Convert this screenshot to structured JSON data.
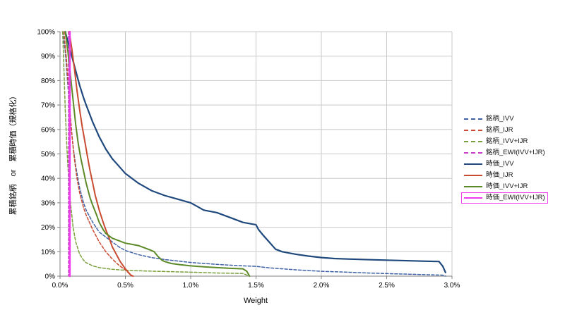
{
  "chart_data": {
    "type": "line",
    "title": "",
    "xlabel": "Weight",
    "ylabel": "累積銘柄　or　累積時価（規格化）",
    "xlim": [
      0,
      3.0
    ],
    "ylim": [
      0,
      100
    ],
    "x_unit": "percent weight",
    "y_unit": "percent cumulative",
    "grid": true,
    "grid_color": "#c9c9c9",
    "axis_color": "#808080",
    "legend_position": "right-outside",
    "x_ticks": [
      0,
      0.5,
      1.0,
      1.5,
      2.0,
      2.5,
      3.0
    ],
    "x_tick_labels": [
      "0.0%",
      "0.5%",
      "1.0%",
      "1.5%",
      "2.0%",
      "2.5%",
      "3.0%"
    ],
    "y_ticks": [
      0,
      10,
      20,
      30,
      40,
      50,
      60,
      70,
      80,
      90,
      100
    ],
    "y_tick_labels": [
      "0%",
      "10%",
      "20%",
      "30%",
      "40%",
      "50%",
      "60%",
      "70%",
      "80%",
      "90%",
      "100%"
    ],
    "series": [
      {
        "name": "銘柄_IVV",
        "color": "#3f62a7",
        "style": "dashed",
        "width": 1.5,
        "points": [
          [
            0.02,
            100
          ],
          [
            0.04,
            92
          ],
          [
            0.06,
            78
          ],
          [
            0.08,
            64
          ],
          [
            0.1,
            53
          ],
          [
            0.12,
            45
          ],
          [
            0.15,
            36
          ],
          [
            0.18,
            30
          ],
          [
            0.2,
            27
          ],
          [
            0.25,
            22
          ],
          [
            0.3,
            18
          ],
          [
            0.35,
            16
          ],
          [
            0.4,
            14
          ],
          [
            0.45,
            12
          ],
          [
            0.5,
            10.5
          ],
          [
            0.6,
            8.8
          ],
          [
            0.7,
            7.6
          ],
          [
            0.8,
            6.8
          ],
          [
            0.9,
            6.2
          ],
          [
            1.0,
            5.6
          ],
          [
            1.2,
            4.8
          ],
          [
            1.4,
            4.2
          ],
          [
            1.5,
            4.0
          ],
          [
            1.6,
            3.4
          ],
          [
            1.8,
            2.6
          ],
          [
            2.0,
            2.0
          ],
          [
            2.2,
            1.6
          ],
          [
            2.4,
            1.2
          ],
          [
            2.6,
            0.9
          ],
          [
            2.8,
            0.6
          ],
          [
            2.93,
            0.4
          ],
          [
            2.95,
            0
          ]
        ]
      },
      {
        "name": "銘柄_IJR",
        "color": "#cc4a31",
        "style": "dashed",
        "width": 1.5,
        "points": [
          [
            0.03,
            100
          ],
          [
            0.05,
            88
          ],
          [
            0.07,
            72
          ],
          [
            0.09,
            58
          ],
          [
            0.11,
            48
          ],
          [
            0.13,
            40
          ],
          [
            0.15,
            34
          ],
          [
            0.18,
            28
          ],
          [
            0.2,
            25
          ],
          [
            0.25,
            19
          ],
          [
            0.3,
            14
          ],
          [
            0.35,
            10
          ],
          [
            0.4,
            7
          ],
          [
            0.45,
            4.5
          ],
          [
            0.5,
            2.5
          ],
          [
            0.55,
            0
          ]
        ]
      },
      {
        "name": "銘柄_IVV+IJR",
        "color": "#7aa03c",
        "style": "dashed",
        "width": 1.5,
        "points": [
          [
            0.02,
            100
          ],
          [
            0.03,
            85
          ],
          [
            0.04,
            68
          ],
          [
            0.05,
            55
          ],
          [
            0.06,
            45
          ],
          [
            0.08,
            30
          ],
          [
            0.1,
            20
          ],
          [
            0.12,
            14
          ],
          [
            0.15,
            9
          ],
          [
            0.18,
            6.5
          ],
          [
            0.2,
            5.5
          ],
          [
            0.25,
            4.2
          ],
          [
            0.3,
            3.5
          ],
          [
            0.4,
            2.8
          ],
          [
            0.5,
            2.4
          ],
          [
            0.6,
            2.2
          ],
          [
            0.8,
            1.9
          ],
          [
            1.0,
            1.6
          ],
          [
            1.2,
            1.3
          ],
          [
            1.4,
            1.1
          ],
          [
            1.45,
            0
          ]
        ]
      },
      {
        "name": "銘柄_EWI(IVV+IJR)",
        "color": "#c93ec9",
        "style": "dashed",
        "width": 1.5,
        "points": [
          [
            0.065,
            100
          ],
          [
            0.065,
            0
          ]
        ]
      },
      {
        "name": "時価_IVV",
        "color": "#1f497d",
        "style": "solid",
        "width": 2.2,
        "points": [
          [
            0.04,
            100
          ],
          [
            0.06,
            96
          ],
          [
            0.08,
            92
          ],
          [
            0.1,
            88
          ],
          [
            0.12,
            84
          ],
          [
            0.15,
            78
          ],
          [
            0.18,
            73
          ],
          [
            0.2,
            70
          ],
          [
            0.25,
            63
          ],
          [
            0.3,
            57
          ],
          [
            0.35,
            52
          ],
          [
            0.4,
            48
          ],
          [
            0.45,
            45
          ],
          [
            0.5,
            42
          ],
          [
            0.6,
            38
          ],
          [
            0.7,
            35
          ],
          [
            0.8,
            33
          ],
          [
            0.9,
            31.5
          ],
          [
            1.0,
            30
          ],
          [
            1.05,
            28.5
          ],
          [
            1.1,
            27
          ],
          [
            1.2,
            26
          ],
          [
            1.3,
            24
          ],
          [
            1.4,
            22
          ],
          [
            1.5,
            21
          ],
          [
            1.52,
            19
          ],
          [
            1.55,
            17
          ],
          [
            1.6,
            14
          ],
          [
            1.65,
            11
          ],
          [
            1.7,
            10
          ],
          [
            1.8,
            9
          ],
          [
            1.9,
            8.2
          ],
          [
            2.0,
            7.6
          ],
          [
            2.1,
            7.2
          ],
          [
            2.2,
            7.0
          ],
          [
            2.4,
            6.7
          ],
          [
            2.6,
            6.4
          ],
          [
            2.8,
            6.1
          ],
          [
            2.9,
            6.0
          ],
          [
            2.93,
            4
          ],
          [
            2.95,
            1.5
          ]
        ]
      },
      {
        "name": "時価_IJR",
        "color": "#c84b32",
        "style": "solid",
        "width": 2,
        "points": [
          [
            0.07,
            100
          ],
          [
            0.09,
            93
          ],
          [
            0.11,
            85
          ],
          [
            0.13,
            76
          ],
          [
            0.15,
            68
          ],
          [
            0.17,
            61
          ],
          [
            0.19,
            55
          ],
          [
            0.21,
            49
          ],
          [
            0.23,
            43
          ],
          [
            0.25,
            38
          ],
          [
            0.27,
            33
          ],
          [
            0.3,
            27
          ],
          [
            0.33,
            22
          ],
          [
            0.35,
            19
          ],
          [
            0.38,
            15
          ],
          [
            0.4,
            12
          ],
          [
            0.43,
            9
          ],
          [
            0.46,
            6
          ],
          [
            0.5,
            3
          ],
          [
            0.54,
            0.5
          ],
          [
            0.56,
            0
          ]
        ]
      },
      {
        "name": "時価_IVV+IJR",
        "color": "#5d8a28",
        "style": "solid",
        "width": 2,
        "points": [
          [
            0.04,
            100
          ],
          [
            0.06,
            92
          ],
          [
            0.08,
            82
          ],
          [
            0.1,
            72
          ],
          [
            0.12,
            62
          ],
          [
            0.14,
            54
          ],
          [
            0.16,
            48
          ],
          [
            0.18,
            43
          ],
          [
            0.2,
            38
          ],
          [
            0.23,
            32
          ],
          [
            0.25,
            29
          ],
          [
            0.28,
            25
          ],
          [
            0.3,
            22
          ],
          [
            0.33,
            19
          ],
          [
            0.35,
            17.5
          ],
          [
            0.4,
            15.5
          ],
          [
            0.45,
            14.5
          ],
          [
            0.5,
            13.5
          ],
          [
            0.55,
            13
          ],
          [
            0.6,
            12.5
          ],
          [
            0.65,
            11.5
          ],
          [
            0.7,
            10.5
          ],
          [
            0.72,
            10
          ],
          [
            0.75,
            8
          ],
          [
            0.78,
            6.5
          ],
          [
            0.8,
            6
          ],
          [
            0.85,
            5.2
          ],
          [
            0.9,
            4.8
          ],
          [
            1.0,
            4.2
          ],
          [
            1.1,
            3.8
          ],
          [
            1.2,
            3.5
          ],
          [
            1.3,
            3.2
          ],
          [
            1.4,
            3.0
          ],
          [
            1.43,
            2.0
          ],
          [
            1.45,
            0
          ]
        ]
      },
      {
        "name": "時価_EWI(IVV+IJR)",
        "color": "#ee3bee",
        "style": "solid",
        "width": 2.5,
        "boxed": true,
        "points": [
          [
            0.075,
            100
          ],
          [
            0.075,
            0
          ]
        ]
      }
    ]
  }
}
